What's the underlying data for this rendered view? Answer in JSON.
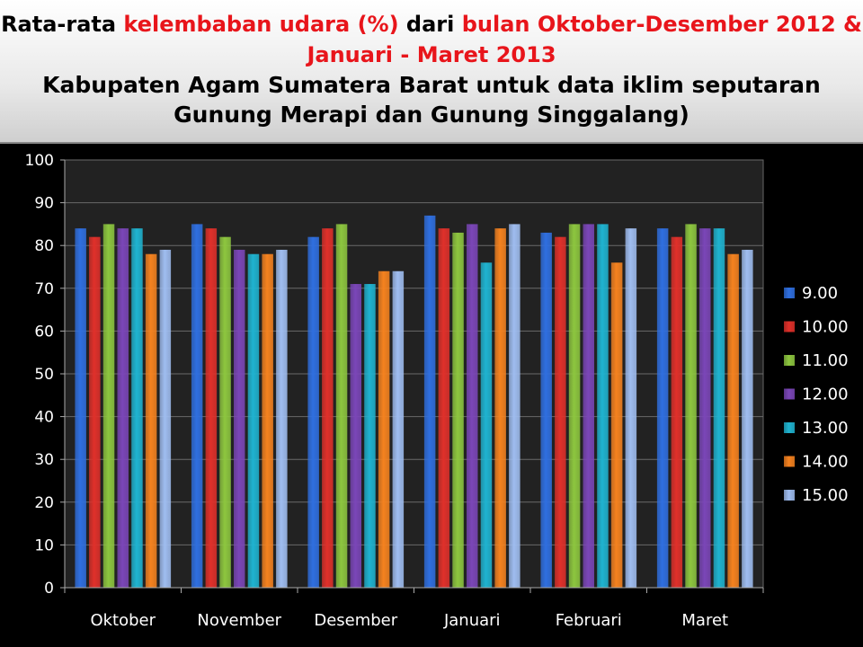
{
  "header": {
    "line1": {
      "part1": "Rata-rata ",
      "part2": "kelembaban udara (%)",
      "part3": " dari ",
      "part4": "bulan Oktober-Desember 2012 & Januari - Maret 2013"
    },
    "line2": "Kabupaten Agam Sumatera Barat untuk data iklim seputaran Gunung Merapi dan Gunung Singgalang)"
  },
  "chart_data": {
    "type": "bar",
    "title": "Rata-rata kelembaban udara (%) dari bulan Oktober-Desember 2012 & Januari - Maret 2013 Kabupaten Agam Sumatera Barat untuk data iklim seputaran Gunung Merapi dan Gunung Singgalang)",
    "categories": [
      "Oktober",
      "November",
      "Desember",
      "Januari",
      "Februari",
      "Maret"
    ],
    "ylim": [
      0,
      100
    ],
    "yticks": [
      0,
      10,
      20,
      30,
      40,
      50,
      60,
      70,
      80,
      90,
      100
    ],
    "grid": true,
    "legend_position": "right",
    "series": [
      {
        "name": "9.00",
        "color": "#2f6fe0",
        "values": [
          84,
          85,
          82,
          87,
          83,
          84
        ]
      },
      {
        "name": "10.00",
        "color": "#e0302a",
        "values": [
          82,
          84,
          84,
          84,
          82,
          82
        ]
      },
      {
        "name": "11.00",
        "color": "#8dc63f",
        "values": [
          85,
          82,
          85,
          83,
          85,
          85
        ]
      },
      {
        "name": "12.00",
        "color": "#7b46b8",
        "values": [
          84,
          79,
          71,
          85,
          85,
          84
        ]
      },
      {
        "name": "13.00",
        "color": "#1fb3d0",
        "values": [
          84,
          78,
          71,
          76,
          85,
          84
        ]
      },
      {
        "name": "14.00",
        "color": "#f5821f",
        "values": [
          78,
          78,
          74,
          84,
          76,
          78
        ]
      },
      {
        "name": "15.00",
        "color": "#9fbdf0",
        "values": [
          79,
          79,
          74,
          85,
          84,
          79
        ]
      }
    ]
  }
}
